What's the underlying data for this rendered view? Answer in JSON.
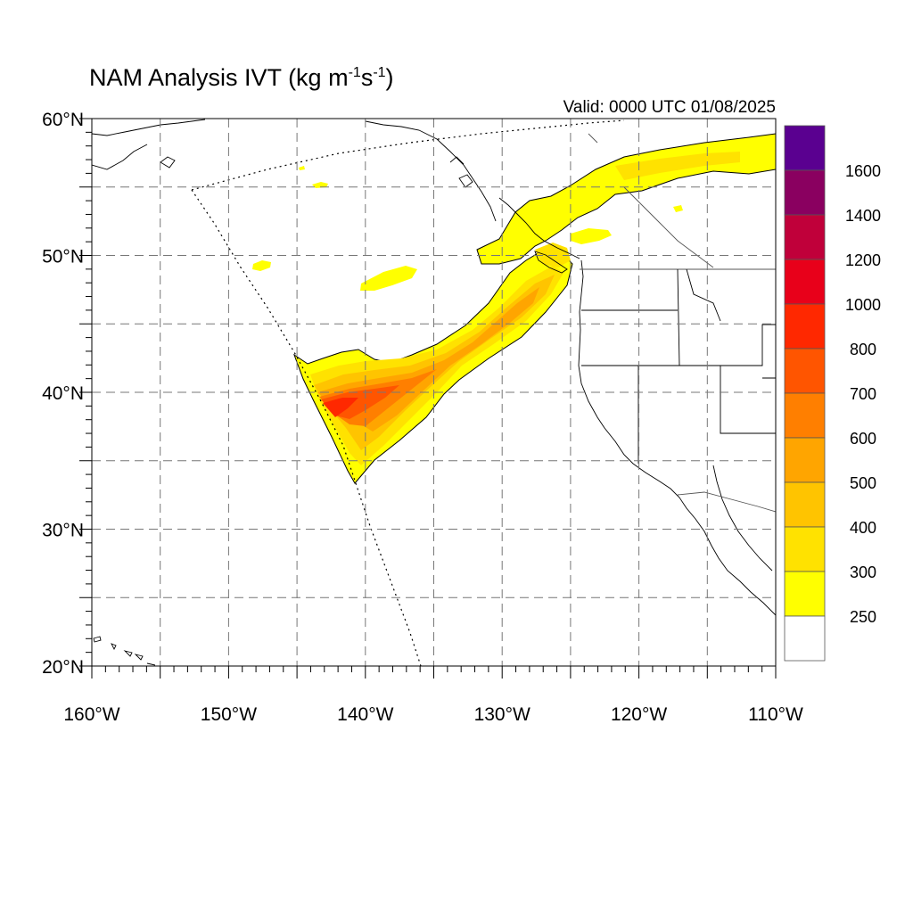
{
  "title": {
    "prefix": "NAM Analysis IVT (kg m",
    "exp1": "-1",
    "mid": "s",
    "exp2": "-1",
    "suffix": ")"
  },
  "valid_label": "Valid: 0000 UTC 01/08/2025",
  "map": {
    "lon_range": [
      -160,
      -110
    ],
    "lat_range": [
      20,
      60
    ],
    "lon_ticks": [
      {
        "value": -160,
        "label": "160°W"
      },
      {
        "value": -150,
        "label": "150°W"
      },
      {
        "value": -140,
        "label": "140°W"
      },
      {
        "value": -130,
        "label": "130°W"
      },
      {
        "value": -120,
        "label": "120°W"
      },
      {
        "value": -110,
        "label": "110°W"
      }
    ],
    "lat_ticks": [
      {
        "value": 60,
        "label": "60°N"
      },
      {
        "value": 50,
        "label": "50°N"
      },
      {
        "value": 40,
        "label": "40°N"
      },
      {
        "value": 30,
        "label": "30°N"
      },
      {
        "value": 20,
        "label": "20°N"
      }
    ],
    "gridlines": true,
    "grid_step_deg": 5
  },
  "colorbar": {
    "placement": "right",
    "labels": [
      "1600",
      "1400",
      "1200",
      "1000",
      "800",
      "700",
      "600",
      "500",
      "400",
      "300",
      "250"
    ],
    "colors": [
      "#5a0090",
      "#8a0060",
      "#c0003a",
      "#e8001a",
      "#ff2800",
      "#ff5500",
      "#ff7f00",
      "#ffa500",
      "#ffc400",
      "#ffe200",
      "#ffff00",
      "#ffffff"
    ]
  }
}
